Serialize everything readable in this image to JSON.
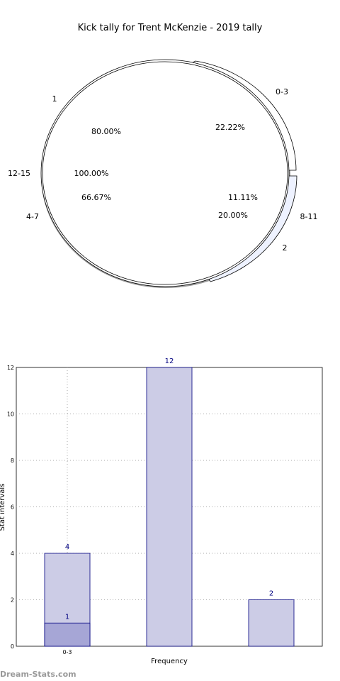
{
  "title": "Kick tally for Trent McKenzie - 2019 tally",
  "watermark": "Dream-Stats.com",
  "chart_data": [
    {
      "type": "pie",
      "title": "Kick tally for Trent McKenzie - 2019 tally",
      "outer_labels": [
        "1",
        "0-3",
        "12-15",
        "8-11",
        "4-7",
        "2"
      ],
      "percent_labels": [
        "80.00%",
        "22.22%",
        "100.00%",
        "66.67%",
        "11.11%",
        "20.00%"
      ],
      "colors": {
        "main": "#ffffff",
        "accent": "#eef2ff",
        "edge": "#000000"
      }
    },
    {
      "type": "bar",
      "categories": [
        "0-3",
        "",
        ""
      ],
      "series": [
        {
          "values": [
            4,
            12,
            2
          ],
          "color": "#cccce6"
        },
        {
          "values": [
            1,
            0,
            0
          ],
          "color": "#a6a6d6"
        }
      ],
      "value_labels": [
        "4",
        "12",
        "2",
        "1"
      ],
      "xlabel": "Frequency",
      "ylabel": "Stat intervals",
      "ylim": [
        0,
        12
      ],
      "yticks": [
        "0",
        "2",
        "4",
        "6",
        "8",
        "10",
        "12"
      ],
      "grid": true
    }
  ]
}
